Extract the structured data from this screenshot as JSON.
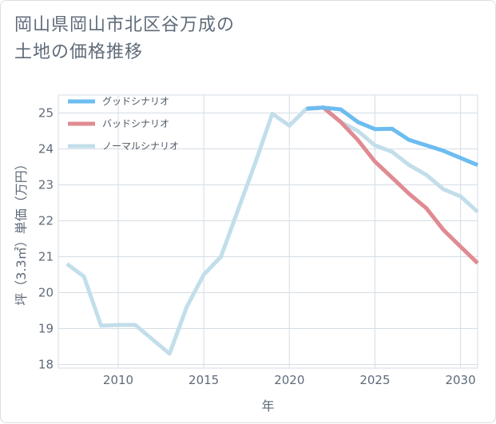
{
  "title": "岡山県岡山市北区谷万成の\n土地の価格推移",
  "chart_data": {
    "type": "line",
    "xlabel": "年",
    "ylabel": "坪（3.3㎡）単価（万円）",
    "xlim": [
      2006.5,
      2031
    ],
    "ylim": [
      17.9,
      25.5
    ],
    "xticks": [
      2010,
      2015,
      2020,
      2025,
      2030
    ],
    "yticks": [
      18,
      19,
      20,
      21,
      22,
      23,
      24,
      25
    ],
    "grid": true,
    "legend_position": "top-left",
    "series": [
      {
        "name": "グッドシナリオ",
        "color": "#6cbcf0",
        "x": [
          2021,
          2022,
          2023,
          2024,
          2025,
          2026,
          2027,
          2028,
          2029,
          2030,
          2031
        ],
        "y": [
          25.12,
          25.15,
          25.1,
          24.75,
          24.55,
          24.56,
          24.25,
          24.1,
          23.95,
          23.75,
          23.55
        ]
      },
      {
        "name": "バッドシナリオ",
        "color": "#e08a92",
        "x": [
          2021,
          2022,
          2023,
          2024,
          2025,
          2026,
          2027,
          2028,
          2029,
          2030,
          2031
        ],
        "y": [
          25.12,
          25.15,
          24.75,
          24.25,
          23.65,
          23.2,
          22.75,
          22.35,
          21.75,
          21.28,
          20.82
        ]
      },
      {
        "name": "ノーマルシナリオ",
        "color": "#c2deea",
        "x": [
          2007,
          2008,
          2009,
          2010,
          2011,
          2012,
          2013,
          2014,
          2015,
          2016,
          2017,
          2018,
          2019,
          2020,
          2021,
          2022,
          2023,
          2024,
          2025,
          2026,
          2027,
          2028,
          2029,
          2030,
          2031
        ],
        "y": [
          20.8,
          20.45,
          19.08,
          19.1,
          19.1,
          18.7,
          18.3,
          19.6,
          20.5,
          21.0,
          22.3,
          23.6,
          24.98,
          24.65,
          25.12,
          25.15,
          24.75,
          24.5,
          24.1,
          23.92,
          23.55,
          23.28,
          22.88,
          22.68,
          22.25
        ]
      }
    ]
  }
}
